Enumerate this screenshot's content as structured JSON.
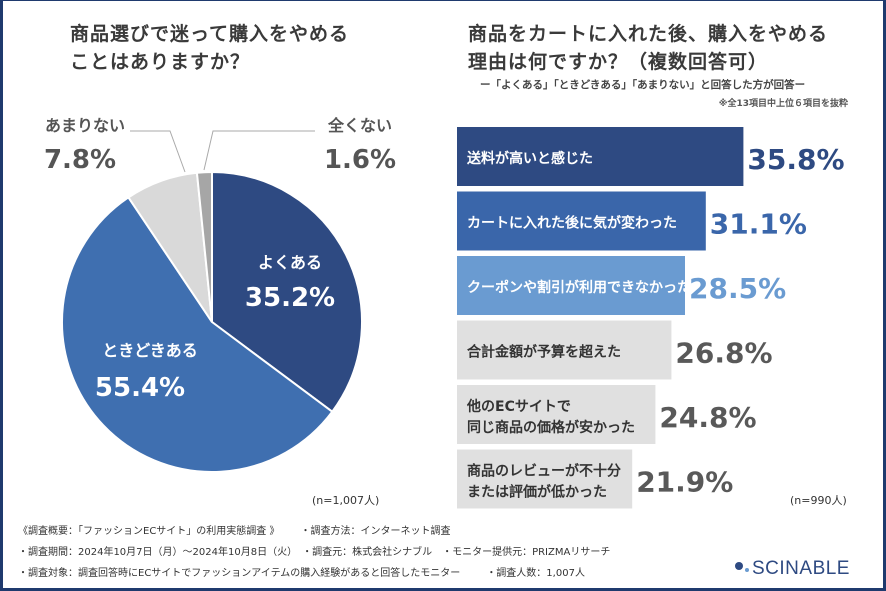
{
  "chart_data": [
    {
      "type": "pie",
      "title": "商品選びで迷って購入をやめることはありますか？",
      "sample": "(n=1,007人)",
      "slices": [
        {
          "label": "よくある",
          "value": 35.2,
          "display": "35.2%",
          "color": "#2e4a82"
        },
        {
          "label": "ときどきある",
          "value": 55.4,
          "display": "55.4%",
          "color": "#3f6fb0"
        },
        {
          "label": "あまりない",
          "value": 7.8,
          "display": "7.8%",
          "color": "#d9d9d9"
        },
        {
          "label": "全くない",
          "value": 1.6,
          "display": "1.6%",
          "color": "#a6a6a6"
        }
      ]
    },
    {
      "type": "bar",
      "orientation": "horizontal",
      "title": "商品をカートに入れた後、購入をやめる理由は何ですか？（複数回答可）",
      "subtitle": "ー「よくある」「ときどきある」「あまりない」と回答した方が回答ー",
      "note": "※全13項目中上位６項目を抜粋",
      "sample": "(n=990人)",
      "bars": [
        {
          "label": [
            "送料が高いと感じた"
          ],
          "value": 35.8,
          "display": "35.8%",
          "color": "#2e4a82",
          "label_color": "#ffffff",
          "value_color": "#2e4a82"
        },
        {
          "label": [
            "カートに入れた後に気が変わった"
          ],
          "value": 31.1,
          "display": "31.1%",
          "color": "#3a66aa",
          "label_color": "#ffffff",
          "value_color": "#3a66aa"
        },
        {
          "label": [
            "クーポンや割引が利用できなかった"
          ],
          "value": 28.5,
          "display": "28.5%",
          "color": "#6a9bd1",
          "label_color": "#ffffff",
          "value_color": "#6a9bd1"
        },
        {
          "label": [
            "合計金額が予算を超えた"
          ],
          "value": 26.8,
          "display": "26.8%",
          "color": "#e0e0e0",
          "label_color": "#333333",
          "value_color": "#595959"
        },
        {
          "label": [
            "他のECサイトで",
            "同じ商品の価格が安かった"
          ],
          "value": 24.8,
          "display": "24.8%",
          "color": "#e0e0e0",
          "label_color": "#333333",
          "value_color": "#595959"
        },
        {
          "label": [
            "商品のレビューが不十分",
            "または評価が低かった"
          ],
          "value": 21.9,
          "display": "21.9%",
          "color": "#e0e0e0",
          "label_color": "#333333",
          "value_color": "#595959"
        }
      ]
    }
  ],
  "titles": {
    "pie_line1": "商品選びで迷って購入をやめる",
    "pie_line2": "ことはありますか？",
    "bar_line1": "商品をカートに入れた後、購入をやめる",
    "bar_line2": "理由は何ですか？（複数回答可）"
  },
  "footer": {
    "row1": [
      "《調査概要：「ファッションECサイト」の利用実態調査 》",
      "・調査方法：インターネット調査"
    ],
    "row2": [
      "・調査期間：2024年10月7日（月）～2024年10月8日（火）",
      "・調査元：株式会社シナブル",
      "・モニター提供元：PRIZMAリサーチ"
    ],
    "row3": [
      "・調査対象：調査回答時にECサイトでファッションアイテムの購入経験があると回答したモニター",
      "・調査人数：1,007人"
    ]
  },
  "logo": "SCINABLE"
}
